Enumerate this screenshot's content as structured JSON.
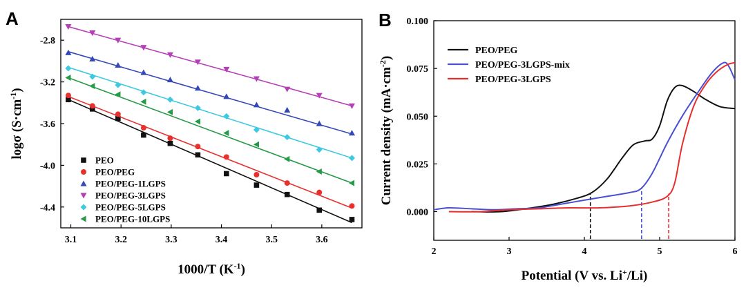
{
  "chart_data": [
    {
      "panel": "A",
      "type": "scatter",
      "title": "",
      "xlabel": "1000/T (K",
      "xlabel_sup": "-1",
      "xlabel_tail": ")",
      "ylabel": "logσ (S·cm",
      "ylabel_sup": "-1",
      "ylabel_tail": ")",
      "xlim": [
        3.08,
        3.68
      ],
      "ylim": [
        -4.6,
        -2.6
      ],
      "xticks": [
        3.1,
        3.2,
        3.3,
        3.4,
        3.5,
        3.6
      ],
      "xtick_labels": [
        "3.1",
        "3.2",
        "3.3",
        "3.4",
        "3.5",
        "3.6"
      ],
      "yticks": [
        -2.8,
        -3.2,
        -3.6,
        -4.0,
        -4.4
      ],
      "ytick_labels": [
        "-2.8",
        "-3.2",
        "-3.6",
        "-4.0",
        "-4.4"
      ],
      "x": [
        3.095,
        3.143,
        3.194,
        3.245,
        3.298,
        3.353,
        3.41,
        3.47,
        3.531,
        3.595,
        3.66
      ],
      "legend_position": "bottom-left",
      "series": [
        {
          "name": "PEO",
          "color": "#111111",
          "marker": "square",
          "fit": [
            -3.37,
            -4.55
          ],
          "values": [
            -3.37,
            -3.46,
            -3.55,
            -3.71,
            -3.79,
            -3.9,
            -4.08,
            -4.19,
            -4.28,
            -4.43,
            -4.52
          ]
        },
        {
          "name": "PEO/PEG",
          "color": "#e8312f",
          "marker": "circle",
          "fit": [
            -3.34,
            -4.41
          ],
          "values": [
            -3.33,
            -3.43,
            -3.51,
            -3.64,
            -3.74,
            -3.82,
            -3.92,
            -4.09,
            -4.17,
            -4.26,
            -4.39
          ]
        },
        {
          "name": "PEO/PEG-1LGPS",
          "color": "#3548b8",
          "marker": "triangle-up",
          "fit": [
            -2.91,
            -3.7
          ],
          "values": [
            -2.92,
            -2.98,
            -3.04,
            -3.11,
            -3.18,
            -3.26,
            -3.34,
            -3.42,
            -3.47,
            -3.6,
            -3.69
          ]
        },
        {
          "name": "PEO/PEG-3LGPS",
          "color": "#b540b6",
          "marker": "triangle-down",
          "fit": [
            -2.67,
            -3.43
          ],
          "values": [
            -2.67,
            -2.73,
            -2.8,
            -2.87,
            -2.94,
            -3.01,
            -3.08,
            -3.17,
            -3.27,
            -3.33,
            -3.43
          ]
        },
        {
          "name": "PEO/PEG-5LGPS",
          "color": "#3ec9e0",
          "marker": "diamond",
          "fit": [
            -3.06,
            -3.93
          ],
          "values": [
            -3.07,
            -3.15,
            -3.23,
            -3.3,
            -3.37,
            -3.45,
            -3.53,
            -3.66,
            -3.73,
            -3.85,
            -3.93
          ]
        },
        {
          "name": "PEO/PEG-10LGPS",
          "color": "#259a47",
          "marker": "triangle-left",
          "fit": [
            -3.16,
            -4.17
          ],
          "values": [
            -3.16,
            -3.24,
            -3.32,
            -3.39,
            -3.49,
            -3.58,
            -3.69,
            -3.8,
            -3.94,
            -4.06,
            -4.17
          ]
        }
      ]
    },
    {
      "panel": "B",
      "type": "line",
      "title": "",
      "xlabel": "Potential (V vs. Li",
      "xlabel_sup": "+",
      "xlabel_tail": "/Li)",
      "ylabel": "Current density (mA·cm",
      "ylabel_sup": "-2",
      "ylabel_tail": ")",
      "xlim": [
        2,
        6
      ],
      "ylim": [
        -0.015,
        0.1
      ],
      "xticks": [
        2,
        3,
        4,
        5,
        6
      ],
      "xtick_labels": [
        "2",
        "3",
        "4",
        "5",
        "6"
      ],
      "yticks": [
        0.0,
        0.025,
        0.05,
        0.075,
        0.1
      ],
      "ytick_labels": [
        "0.000",
        "0.025",
        "0.050",
        "0.075",
        "0.100"
      ],
      "legend_position": "top-left",
      "series": [
        {
          "name": "PEO/PEG",
          "color": "#111111",
          "onset": 4.08,
          "x": [
            2.5,
            2.9,
            3.3,
            3.6,
            3.9,
            4.1,
            4.3,
            4.5,
            4.65,
            4.8,
            4.9,
            5.0,
            5.1,
            5.2,
            5.3,
            5.45,
            5.6,
            5.8,
            6.0
          ],
          "y": [
            0.0,
            0.0,
            0.002,
            0.004,
            0.007,
            0.01,
            0.017,
            0.028,
            0.035,
            0.037,
            0.038,
            0.045,
            0.058,
            0.065,
            0.066,
            0.063,
            0.059,
            0.055,
            0.054
          ]
        },
        {
          "name": "PEO/PEG-3LGPS-mix",
          "color": "#4a4fd0",
          "onset": 4.76,
          "x": [
            2.0,
            2.2,
            2.5,
            2.8,
            3.1,
            3.4,
            3.7,
            4.0,
            4.3,
            4.6,
            4.75,
            4.9,
            5.1,
            5.3,
            5.5,
            5.7,
            5.85,
            5.92,
            6.0
          ],
          "y": [
            0.001,
            0.002,
            0.0015,
            0.001,
            0.0015,
            0.002,
            0.004,
            0.006,
            0.008,
            0.01,
            0.012,
            0.02,
            0.036,
            0.05,
            0.062,
            0.073,
            0.078,
            0.076,
            0.069
          ]
        },
        {
          "name": "PEO/PEG-3LGPS",
          "color": "#e52e2e",
          "onset": 5.12,
          "x": [
            2.2,
            2.6,
            3.0,
            3.4,
            3.8,
            4.2,
            4.6,
            4.9,
            5.1,
            5.2,
            5.3,
            5.45,
            5.6,
            5.75,
            5.9,
            6.0
          ],
          "y": [
            0.0,
            0.0,
            0.001,
            0.0015,
            0.002,
            0.002,
            0.003,
            0.005,
            0.008,
            0.015,
            0.035,
            0.055,
            0.066,
            0.073,
            0.077,
            0.078
          ]
        }
      ]
    }
  ]
}
